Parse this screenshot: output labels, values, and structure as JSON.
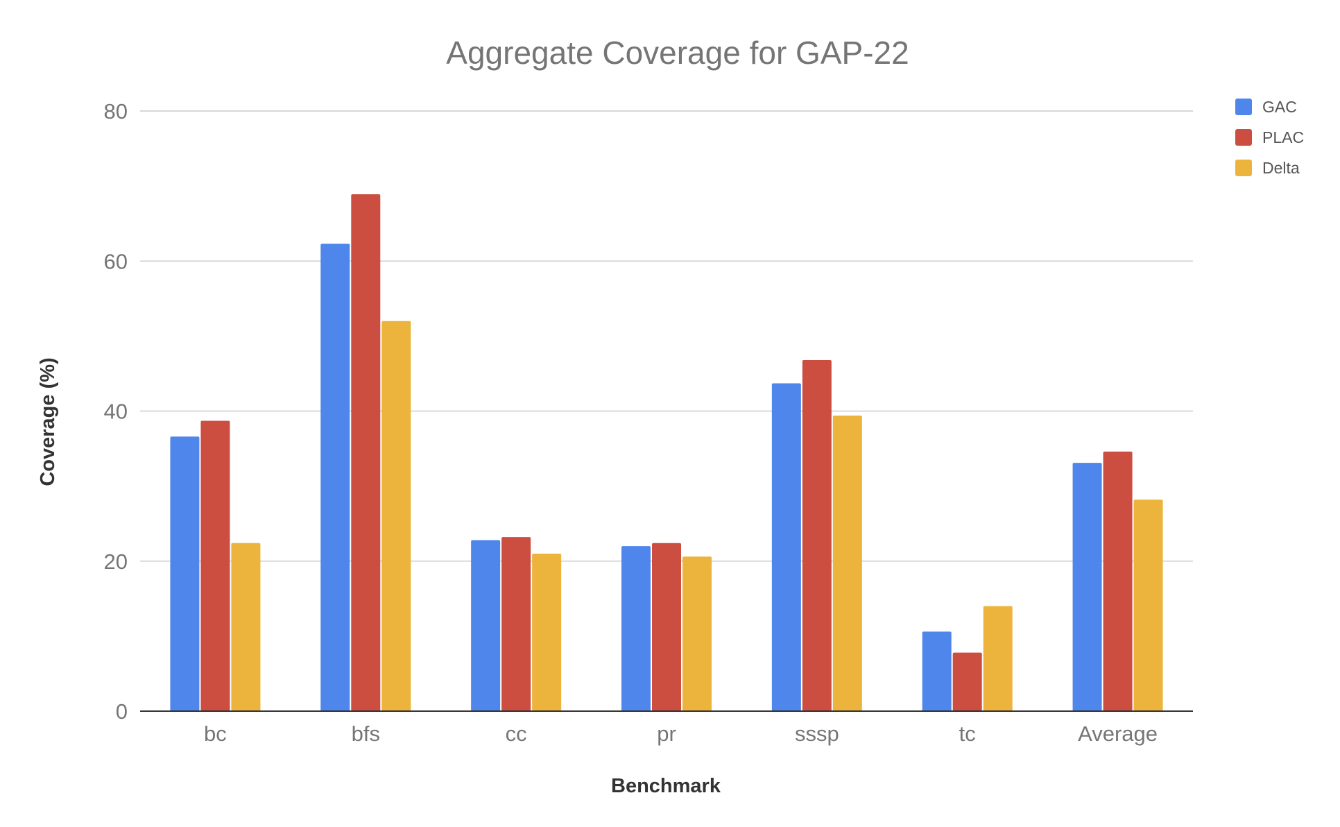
{
  "chart_data": {
    "type": "bar",
    "title": "Aggregate Coverage for GAP-22",
    "xlabel": "Benchmark",
    "ylabel": "Coverage (%)",
    "categories": [
      "bc",
      "bfs",
      "cc",
      "pr",
      "sssp",
      "tc",
      "Average"
    ],
    "series": [
      {
        "name": "GAC",
        "color": "#4f86ec",
        "values": [
          36.6,
          62.3,
          22.8,
          22.0,
          43.7,
          10.6,
          33.1
        ]
      },
      {
        "name": "PLAC",
        "color": "#cc4e40",
        "values": [
          38.7,
          68.9,
          23.2,
          22.4,
          46.8,
          7.8,
          34.6
        ]
      },
      {
        "name": "Delta",
        "color": "#ecb43c",
        "values": [
          22.4,
          52.0,
          21.0,
          20.6,
          39.4,
          14.0,
          28.2
        ]
      }
    ],
    "ylim": [
      0,
      80
    ],
    "yticks": [
      0,
      20,
      40,
      60,
      80
    ],
    "grid": true,
    "legend_position": "top-right"
  }
}
